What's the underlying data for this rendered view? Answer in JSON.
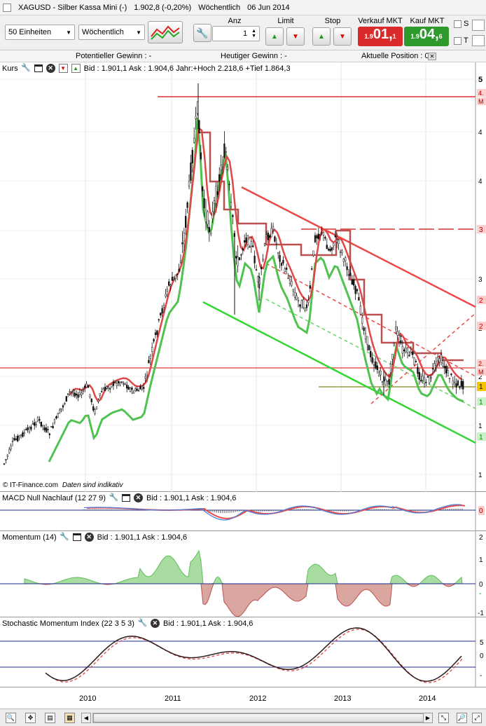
{
  "title_bar": {
    "symbol": "XAGUSD - Silber Kassa Mini (-)",
    "price_change": "1.902,8 (-0,20%)",
    "period": "Wöchentlich",
    "date": "06 Jun 2014"
  },
  "toolbar": {
    "units_select": "50 Einheiten",
    "period_select": "Wöchentlich",
    "anz_label": "Anz",
    "anz_value": "1",
    "limit_label": "Limit",
    "stop_label": "Stop",
    "sell_label": "Verkauf MKT",
    "buy_label": "Kauf MKT",
    "sell_price": {
      "small": "1.9",
      "big": "01,",
      "sup": "1"
    },
    "buy_price": {
      "small": "1.9",
      "big": "04,",
      "sup": "6"
    },
    "checkbox_s": "S",
    "checkbox_t": "T",
    "sell_color": "#d92b2b",
    "buy_color": "#2e9a2e"
  },
  "info_bar": {
    "potential": "Potentieller Gewinn : -",
    "today": "Heutiger Gewinn : -",
    "position": "Aktuelle Position : 0"
  },
  "main_pane": {
    "name": "Kurs",
    "quote": "Bid : 1.901,1 Ask : 1.904,6 Jahr:+Hoch 2.218,6 +Tief 1.864,3",
    "copyright": "© IT-Finance.com",
    "disclaimer": "Daten sind indikativ",
    "right_labels": [
      "5",
      "4",
      "4",
      "3",
      "3",
      "2",
      "2",
      "1",
      "1",
      "1"
    ],
    "tag_labels": [
      "4.",
      "M",
      "3",
      "2",
      "2",
      "2.",
      "M",
      "1",
      "1",
      "1"
    ]
  },
  "macd_pane": {
    "name": "MACD Null Nachlauf (12 27 9)",
    "quote": "Bid : 1.901,1 Ask : 1.904,6",
    "tag": "0"
  },
  "momentum_pane": {
    "name": "Momentum (14)",
    "quote": "Bid : 1.901,1 Ask : 1.904,6",
    "right_labels": [
      "2",
      "1",
      "0",
      "-",
      "-1"
    ]
  },
  "stochastic_pane": {
    "name": "Stochastic Momentum Index (22 3 5 3)",
    "quote": "Bid : 1.901,1 Ask : 1.904,6",
    "right_labels": [
      "5",
      "0",
      "-"
    ]
  },
  "time_axis": [
    "2010",
    "2011",
    "2012",
    "2013",
    "2014"
  ]
}
